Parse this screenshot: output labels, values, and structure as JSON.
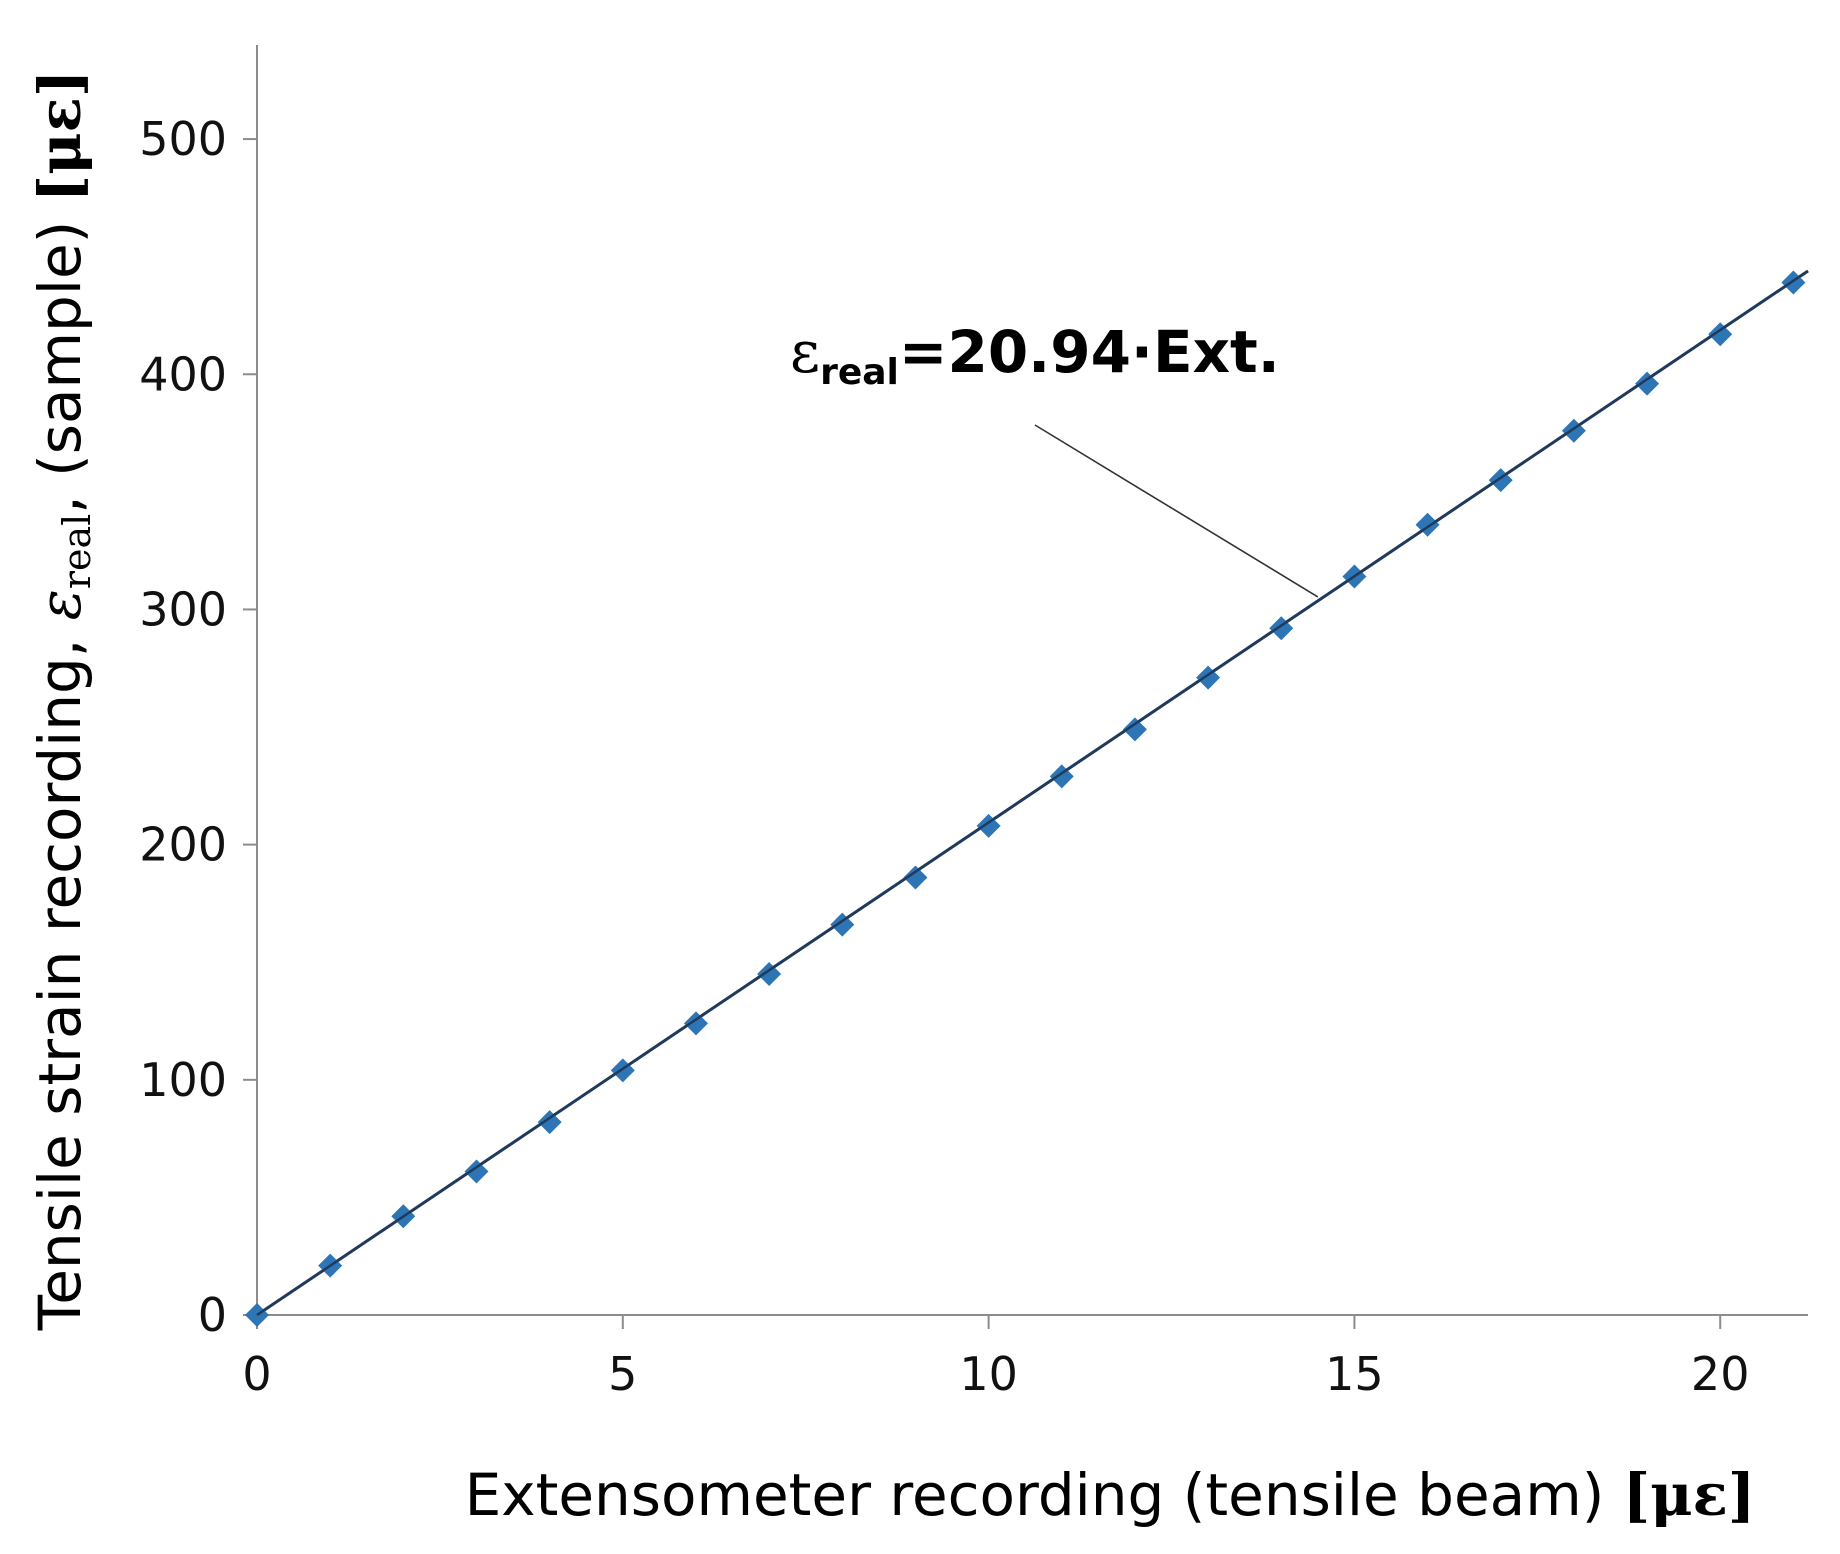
{
  "chart_data": {
    "type": "scatter",
    "xlabel": {
      "main": "Extensometer recording (tensile beam) ",
      "unit": "[με]"
    },
    "ylabel": {
      "part1": "Tensile strain recording, ",
      "symbol": "ε",
      "symbol_sub": "real",
      "part2": ", (sample) ",
      "unit": "[με]"
    },
    "xlim": [
      0,
      21.2
    ],
    "ylim": [
      0,
      540
    ],
    "xticks": [
      "0",
      "5",
      "10",
      "15",
      "20"
    ],
    "yticks": [
      "0",
      "100",
      "200",
      "300",
      "400",
      "500"
    ],
    "grid": false,
    "series": [
      {
        "marker": "diamond",
        "color": "#2e75b6",
        "x": [
          0,
          1,
          2,
          3,
          4,
          5,
          6,
          7,
          8,
          9,
          10,
          11,
          12,
          13,
          14,
          15,
          16,
          17,
          18,
          19,
          20,
          21
        ],
        "y": [
          0,
          21,
          42,
          61,
          82,
          104,
          124,
          145,
          166,
          186,
          208,
          229,
          249,
          271,
          292,
          314,
          336,
          355,
          376,
          396,
          417,
          439
        ]
      }
    ],
    "trendline": {
      "slope": 20.94,
      "color": "#1f3a5a",
      "label": {
        "symbol": "ε",
        "sub": "real",
        "rest": "=20.94·Ext."
      }
    }
  }
}
